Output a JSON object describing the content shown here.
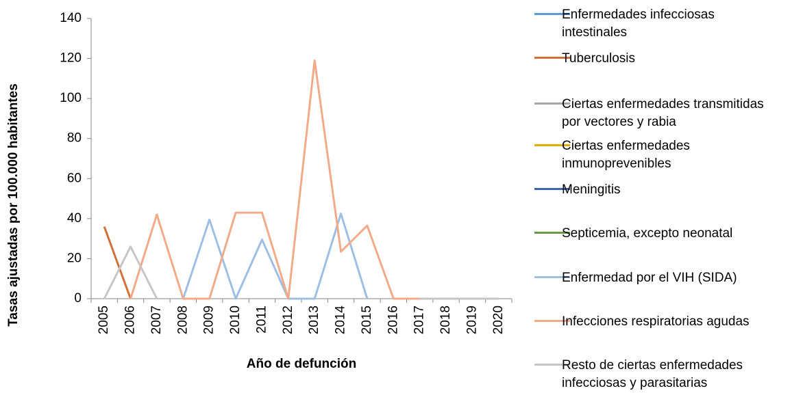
{
  "chart_data": {
    "type": "line",
    "y_label": "Tasas ajustadas por 100.000 habitantes",
    "x_label": "Año de defunción",
    "categories": [
      "2005",
      "2006",
      "2007",
      "2008",
      "2009",
      "2010",
      "2011",
      "2012",
      "2013",
      "2014",
      "2015",
      "2016",
      "2017",
      "2018",
      "2019",
      "2020"
    ],
    "ylim": [
      0,
      140
    ],
    "yticks": [
      0,
      20,
      40,
      60,
      80,
      100,
      120,
      140
    ],
    "grid": false,
    "legend": "right",
    "series": [
      {
        "name": "Enfermedades infecciosas intestinales",
        "color": "#5b9bd5",
        "values": [
          null,
          null,
          null,
          null,
          null,
          null,
          null,
          null,
          null,
          null,
          null,
          null,
          0,
          0,
          0,
          0
        ]
      },
      {
        "name": "Tuberculosis",
        "color": "#d0703a",
        "values": [
          36,
          0,
          null,
          null,
          null,
          null,
          null,
          null,
          null,
          null,
          null,
          null,
          0,
          0,
          0,
          0
        ]
      },
      {
        "name": "Ciertas enfermedades transmitidas por vectores y rabia",
        "color": "#a5a5a5",
        "values": [
          null,
          null,
          null,
          null,
          null,
          null,
          null,
          null,
          null,
          null,
          null,
          null,
          0,
          0,
          0,
          0
        ]
      },
      {
        "name": "Ciertas enfermedades inmunoprevenibles",
        "color": "#e0b000",
        "values": [
          null,
          null,
          null,
          null,
          null,
          null,
          null,
          null,
          null,
          null,
          null,
          null,
          0,
          0,
          0,
          0
        ]
      },
      {
        "name": "Meningitis",
        "color": "#3a64ad",
        "values": [
          null,
          null,
          null,
          null,
          null,
          null,
          null,
          null,
          null,
          null,
          null,
          null,
          0,
          0,
          0,
          0
        ]
      },
      {
        "name": "Septicemia, excepto neonatal",
        "color": "#6a9a45",
        "values": [
          null,
          null,
          null,
          null,
          null,
          null,
          null,
          null,
          null,
          null,
          null,
          null,
          0,
          0,
          0,
          0
        ]
      },
      {
        "name": "Enfermedad por el VIH (SIDA)",
        "color": "#9dbfe3",
        "values": [
          null,
          null,
          null,
          0,
          39.5,
          0,
          29.5,
          0,
          0,
          42.5,
          0,
          null,
          0,
          0,
          0,
          0
        ]
      },
      {
        "name": "Infecciones respiratorias agudas",
        "color": "#f2aa88",
        "values": [
          null,
          0,
          42,
          0,
          0,
          43,
          43,
          0,
          119,
          23.5,
          36.5,
          0,
          0,
          null,
          null,
          null
        ]
      },
      {
        "name": "Resto de ciertas enfermedades infecciosas y parasitarias",
        "color": "#c6c6c6",
        "values": [
          0,
          26,
          0,
          null,
          null,
          null,
          null,
          null,
          null,
          null,
          null,
          null,
          0,
          0,
          0,
          0
        ]
      }
    ]
  }
}
